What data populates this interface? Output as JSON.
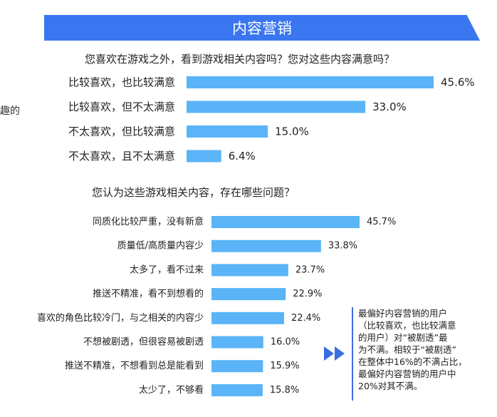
{
  "header": {
    "title": "内容营销"
  },
  "cut_label": "趣的",
  "chart_data": [
    {
      "type": "bar",
      "orientation": "horizontal",
      "title": "您喜欢在游戏之外，看到游戏相关内容吗？您对这些内容满意吗？",
      "categories": [
        "比较喜欢，也比较满意",
        "比较喜欢，但不太满意",
        "不太喜欢，但比较满意",
        "不太喜欢，且不太满意"
      ],
      "values": [
        45.6,
        33.0,
        15.0,
        6.4
      ],
      "value_labels": [
        "45.6%",
        "33.0%",
        "15.0%",
        "6.4%"
      ],
      "bar_color": "#5ab4f7",
      "xlim": [
        0,
        45.6
      ]
    },
    {
      "type": "bar",
      "orientation": "horizontal",
      "title": "您认为这些游戏相关内容，存在哪些问题？",
      "categories": [
        "同质化比较严重，没有新意",
        "质量低/高质量内容少",
        "太多了，看不过来",
        "推送不精准，看不到想看的",
        "喜欢的角色比较冷门，与之相关的内容少",
        "不想被剧透，但很容易被剧透",
        "推送不精准，不想看到总是能看到",
        "太少了，不够看"
      ],
      "values": [
        45.7,
        33.8,
        23.7,
        22.9,
        22.4,
        16.0,
        15.9,
        15.8
      ],
      "value_labels": [
        "45.7%",
        "33.8%",
        "23.7%",
        "22.9%",
        "22.4%",
        "16.0%",
        "15.9%",
        "15.8%"
      ],
      "bar_color": "#5ab4f7",
      "xlim": [
        0,
        45.7
      ]
    }
  ],
  "annotation": {
    "text": "最偏好内容营销的用户\n（比较喜欢，也比较满意\n的用户）对“被剧透”最\n为不满。相较于“被剧透”\n在整体中16%的不满占比，\n最偏好内容营销的用户中\n20%对其不满。",
    "accent_color": "#3a6fe0"
  }
}
